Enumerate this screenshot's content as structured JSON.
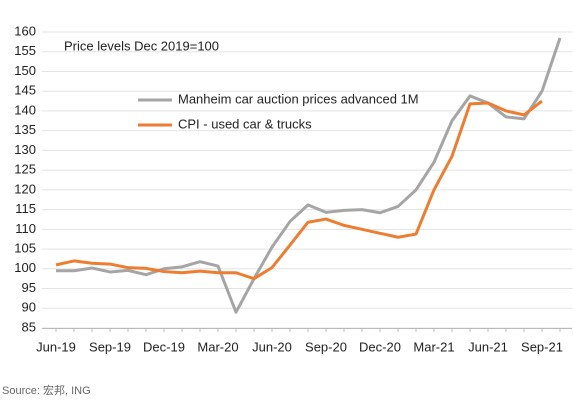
{
  "chart_data": {
    "type": "line",
    "annotation": "Price levels Dec 2019=100",
    "source": "Source: 宏邦, ING",
    "categories": [
      "Jun-19",
      null,
      null,
      "Sep-19",
      null,
      null,
      "Dec-19",
      null,
      null,
      "Mar-20",
      null,
      null,
      "Jun-20",
      null,
      null,
      "Sep-20",
      null,
      null,
      "Dec-20",
      null,
      null,
      "Mar-21",
      null,
      null,
      "Jun-21",
      null,
      null,
      "Sep-21",
      null
    ],
    "series": [
      {
        "name": "Manheim car auction prices advanced 1M",
        "color": "#a5a5a5",
        "values": [
          99.5,
          99.5,
          100.2,
          99.2,
          99.6,
          98.5,
          100,
          100.5,
          101.8,
          100.7,
          89,
          97.5,
          105.5,
          112,
          116.2,
          114.3,
          114.8,
          115,
          114.2,
          115.8,
          120,
          127,
          137.5,
          143.8,
          142,
          138.5,
          138,
          145,
          158.5
        ]
      },
      {
        "name": "CPI - used car & trucks",
        "color": "#ed7d31",
        "values": [
          101,
          102,
          101.4,
          101.2,
          100.3,
          100.1,
          99.3,
          99,
          99.4,
          99,
          99,
          97.5,
          100.3,
          106,
          111.8,
          112.6,
          111,
          110,
          109,
          108,
          108.8,
          120,
          128.5,
          141.8,
          142,
          140,
          139,
          142.5,
          null
        ]
      }
    ],
    "ylim": [
      85,
      160
    ],
    "yticks": [
      85,
      90,
      95,
      100,
      105,
      110,
      115,
      120,
      125,
      130,
      135,
      140,
      145,
      150,
      155,
      160
    ],
    "grid": true,
    "legend": "upper left"
  }
}
